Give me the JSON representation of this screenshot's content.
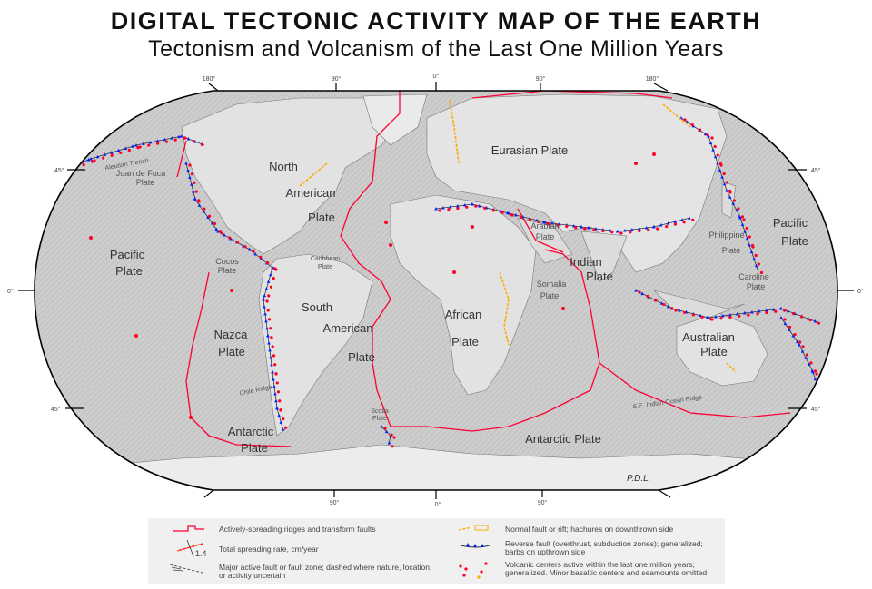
{
  "header": {
    "title": "DIGITAL TECTONIC ACTIVITY MAP OF THE EARTH",
    "subtitle": "Tectonism and Volcanism of the Last One Million Years"
  },
  "graticule": {
    "top": [
      "180°",
      "90°",
      "0°",
      "90°",
      "180°"
    ],
    "bottom": [
      "90°",
      "0°",
      "90°"
    ],
    "left": [
      "45°",
      "0°",
      "45°"
    ],
    "right": [
      "45°",
      "0°",
      "45°"
    ]
  },
  "plates": {
    "eurasian": "Eurasian Plate",
    "north_american": [
      "North",
      "American",
      "Plate"
    ],
    "pacific_west": [
      "Pacific",
      "Plate"
    ],
    "pacific_east": [
      "Pacific",
      "Plate"
    ],
    "nazca": [
      "Nazca",
      "Plate"
    ],
    "south_american": [
      "South",
      "American",
      "Plate"
    ],
    "african": [
      "African",
      "Plate"
    ],
    "antarctic_west": [
      "Antarctic",
      "Plate"
    ],
    "antarctic_east": "Antarctic Plate",
    "australian": [
      "Australian",
      "Plate"
    ],
    "indian": [
      "Indian",
      "Plate"
    ],
    "arabian": [
      "Arabian",
      "Plate"
    ],
    "somalia": [
      "Somalia",
      "Plate"
    ],
    "philippine": [
      "Philippine",
      "Plate"
    ],
    "caroline": [
      "Caroline",
      "Plate"
    ],
    "juan_de_fuca": [
      "Juan de Fuca",
      "Plate"
    ],
    "cocos": [
      "Cocos",
      "Plate"
    ],
    "caribbean": [
      "Caribbean",
      "Plate"
    ],
    "scotia": [
      "Scotia",
      "Plate"
    ]
  },
  "features": {
    "aleutian_trench": "Aleutian Trench",
    "chile_ridge": "Chile Ridge",
    "se_indian_ridge": "S.E. Indian Ocean Ridge"
  },
  "signature": "P.D.L.",
  "legend": {
    "items": [
      {
        "label": "Actively-spreading ridges and transform faults"
      },
      {
        "label": "Total spreading rate, cm/year",
        "sample_value": "1.4"
      },
      {
        "label": "Major active fault or fault zone; dashed where nature, location, or activity uncertain"
      },
      {
        "label": "Normal fault or rift; hachures on downthrown side"
      },
      {
        "label": "Reverse fault (overthrust, subduction zones); generalized; barbs on upthrown side"
      },
      {
        "label": "Volcanic centers active within the last one million years; generalized.  Minor basaltic centers and seamounts omitted."
      }
    ]
  },
  "colors": {
    "ridge": "#ff0033",
    "transform": "#cc00cc",
    "normal_fault": "#ffaa00",
    "reverse_fault": "#0022ff",
    "volcano": "#ff0022",
    "land": "#d8d8d8",
    "ocean": "#c4c4c4"
  }
}
